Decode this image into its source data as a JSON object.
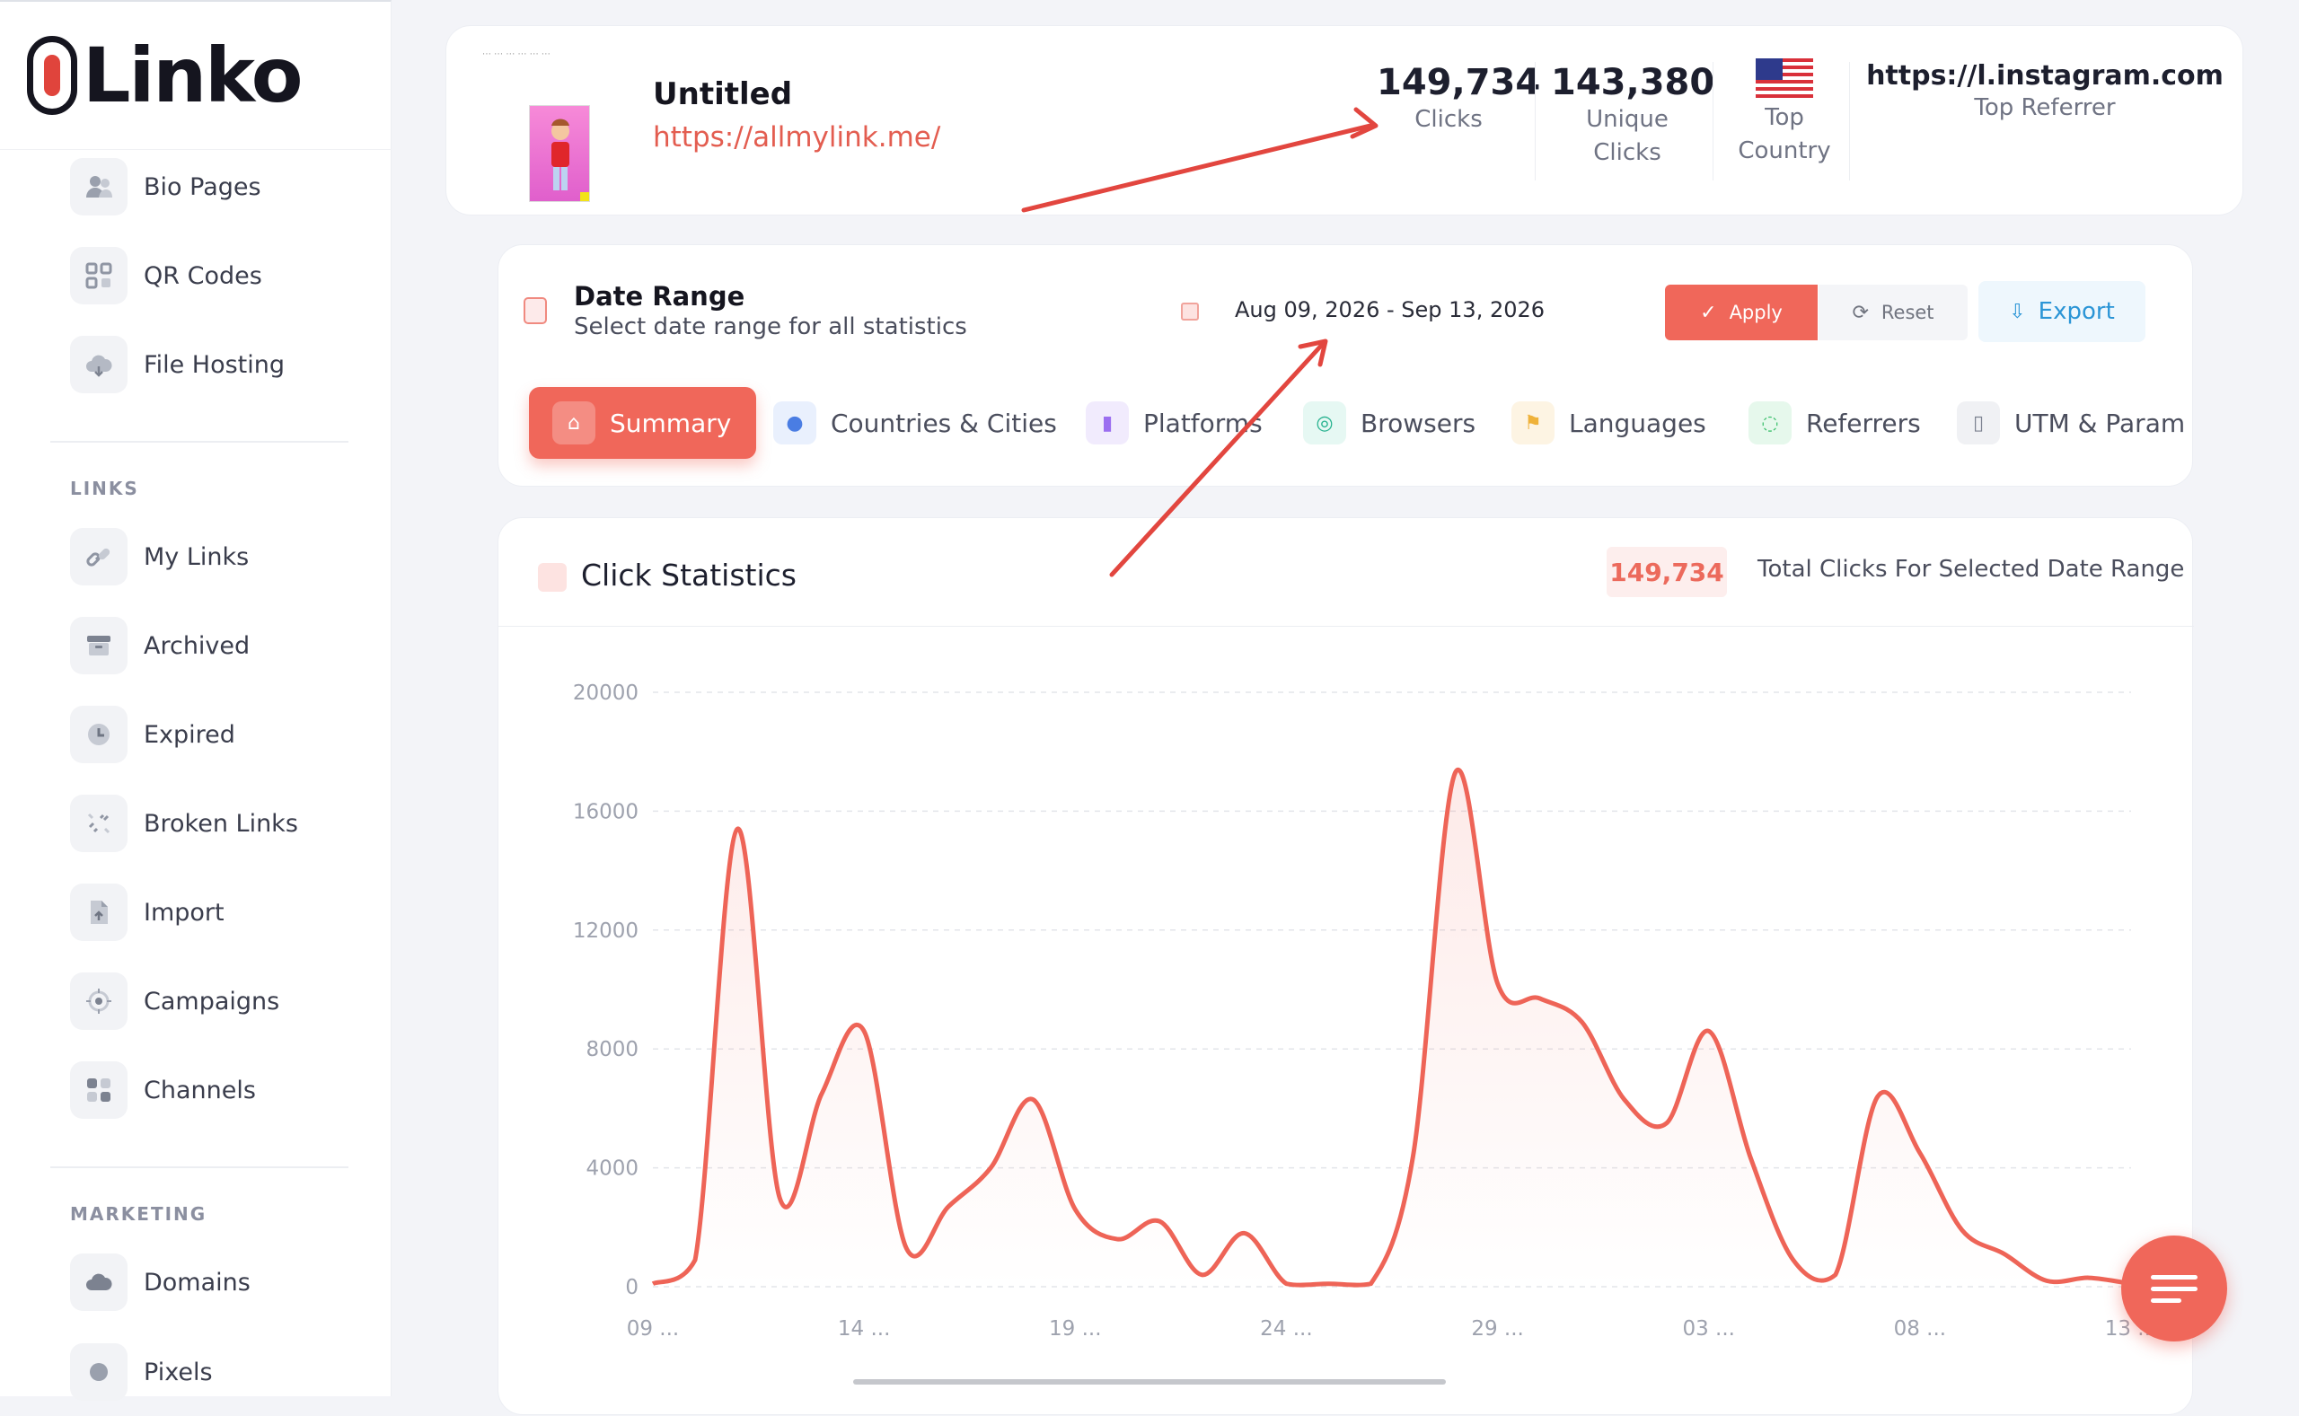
{
  "brand": {
    "name": "Linko"
  },
  "sidebar": {
    "items_top": [
      {
        "label": "Bio Pages",
        "icon": "users-icon"
      },
      {
        "label": "QR Codes",
        "icon": "qr-code-icon"
      },
      {
        "label": "File Hosting",
        "icon": "cloud-icon"
      }
    ],
    "links_section": "LINKS",
    "links_items": [
      {
        "label": "My Links",
        "icon": "link-icon"
      },
      {
        "label": "Archived",
        "icon": "archive-icon"
      },
      {
        "label": "Expired",
        "icon": "clock-icon"
      },
      {
        "label": "Broken Links",
        "icon": "broken-link-icon"
      },
      {
        "label": "Import",
        "icon": "import-file-icon"
      },
      {
        "label": "Campaigns",
        "icon": "target-icon"
      },
      {
        "label": "Channels",
        "icon": "grid-icon"
      }
    ],
    "marketing_section": "MARKETING",
    "marketing_items": [
      {
        "label": "Domains",
        "icon": "cloud-domain-icon"
      },
      {
        "label": "Pixels",
        "icon": "pixel-icon"
      }
    ]
  },
  "header": {
    "title": "Untitled",
    "url": "https://allmylink.me/",
    "clicks": "149,734",
    "clicks_label": "Clicks",
    "unique_clicks": "143,380",
    "unique_label_1": "Unique",
    "unique_label_2": "Clicks",
    "top_country_label_1": "Top",
    "top_country_label_2": "Country",
    "top_country_flag": "us-flag-icon",
    "top_referrer": "https://l.instagram.com",
    "top_referrer_label": "Top Referrer"
  },
  "date_range": {
    "title": "Date Range",
    "subtitle": "Select date range for all statistics",
    "value": "Aug 09, 2026 - Sep 13, 2026",
    "apply_label": "Apply",
    "reset_label": "Reset",
    "export_label": "Export"
  },
  "tabs": [
    {
      "label": "Summary",
      "active": true
    },
    {
      "label": "Countries & Cities"
    },
    {
      "label": "Platforms"
    },
    {
      "label": "Browsers"
    },
    {
      "label": "Languages"
    },
    {
      "label": "Referrers"
    },
    {
      "label": "UTM & Param"
    }
  ],
  "stats": {
    "title": "Click Statistics",
    "total_value": "149,734",
    "total_label": "Total Clicks For Selected Date Range"
  },
  "colors": {
    "accent": "#f0675a",
    "link": "#e35d50",
    "export": "#2b95d6"
  },
  "chart_data": {
    "type": "line",
    "xlabel": "",
    "ylabel": "",
    "ylim": [
      0,
      20000
    ],
    "yticks": [
      0,
      4000,
      8000,
      12000,
      16000,
      20000
    ],
    "xtick_labels": [
      "09 ...",
      "14 ...",
      "19 ...",
      "24 ...",
      "29 ...",
      "03 ...",
      "08 ...",
      "13 ..."
    ],
    "x": [
      "Aug 09",
      "Aug 10",
      "Aug 11",
      "Aug 12",
      "Aug 13",
      "Aug 14",
      "Aug 15",
      "Aug 16",
      "Aug 17",
      "Aug 18",
      "Aug 19",
      "Aug 20",
      "Aug 21",
      "Aug 22",
      "Aug 23",
      "Aug 24",
      "Aug 25",
      "Aug 26",
      "Aug 27",
      "Aug 28",
      "Aug 29",
      "Aug 30",
      "Aug 31",
      "Sep 01",
      "Sep 02",
      "Sep 03",
      "Sep 04",
      "Sep 05",
      "Sep 06",
      "Sep 07",
      "Sep 08",
      "Sep 09",
      "Sep 10",
      "Sep 11",
      "Sep 12",
      "Sep 13"
    ],
    "series": [
      {
        "values": [
          100,
          900,
          15400,
          3000,
          6500,
          8600,
          1300,
          2700,
          4000,
          6300,
          2600,
          1600,
          2200,
          400,
          1800,
          100,
          100,
          100,
          4400,
          17300,
          10200,
          9700,
          8900,
          6300,
          5500,
          8600,
          4300,
          900,
          400,
          6400,
          4500,
          1900,
          1100,
          200,
          300,
          100
        ]
      }
    ]
  }
}
